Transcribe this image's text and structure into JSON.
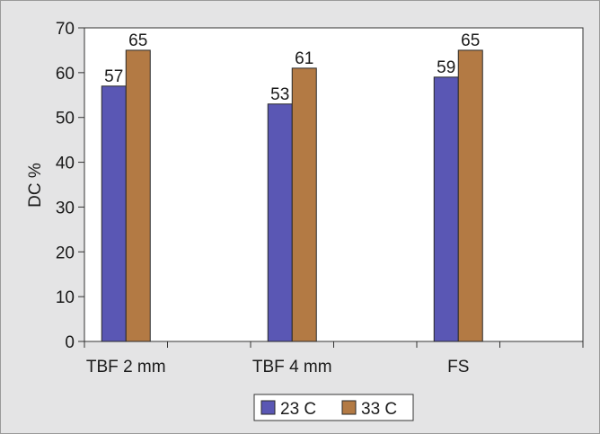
{
  "chart_data": {
    "type": "bar",
    "categories": [
      "TBF 2 mm",
      "TBF 4 mm",
      "FS"
    ],
    "series": [
      {
        "name": "23 C",
        "values": [
          57,
          53,
          59
        ],
        "color": "#5a57b4"
      },
      {
        "name": "33 C",
        "values": [
          65,
          61,
          65
        ],
        "color": "#b37a44"
      }
    ],
    "ylabel": "DC %",
    "xlabel": "",
    "ylim": [
      0,
      70
    ],
    "yticks": [
      0,
      10,
      20,
      30,
      40,
      50,
      60,
      70
    ],
    "grid": false,
    "legend_position": "bottom-center",
    "data_labels": true
  }
}
